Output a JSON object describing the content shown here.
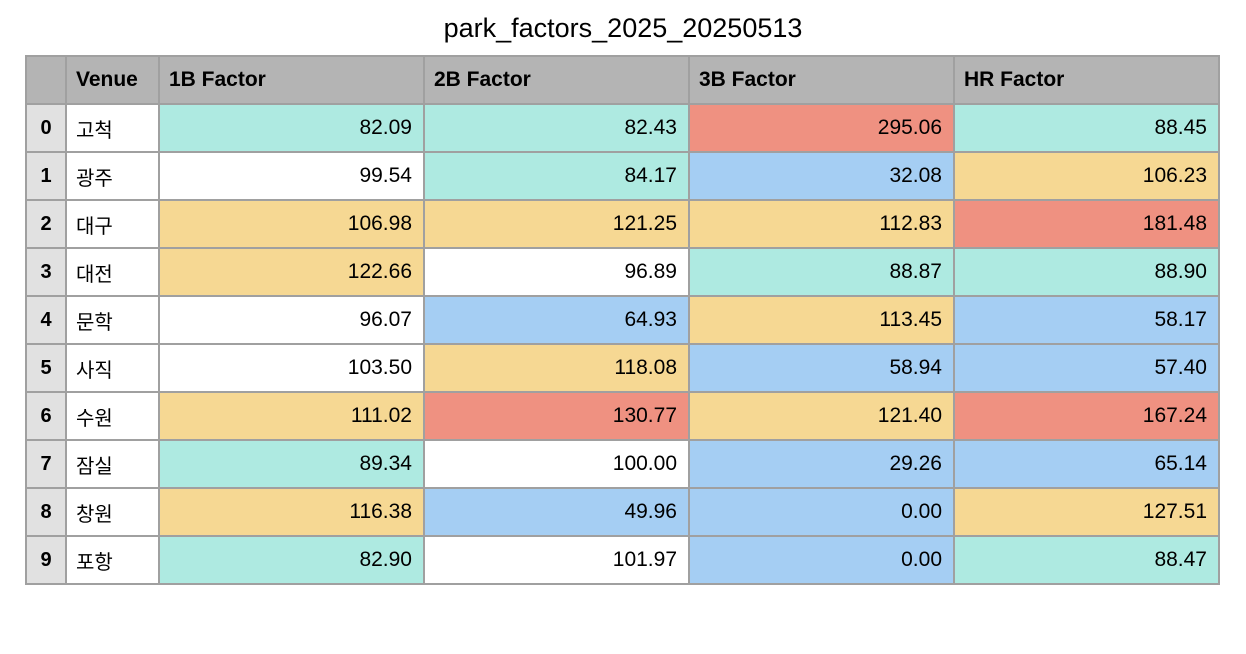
{
  "title": "park_factors_2025_20250513",
  "colors": {
    "header_bg": "#b4b4b4",
    "index_bg": "#e1e1e1",
    "border": "#a0a0a0",
    "teal": "#aeeae1",
    "white": "#ffffff",
    "salmon": "#ef9181",
    "blue": "#a5cef3",
    "orange": "#f6d893",
    "text": "#000000"
  },
  "chart_data": {
    "type": "table",
    "title": "park_factors_2025_20250513",
    "columns": [
      "",
      "Venue",
      "1B Factor",
      "2B Factor",
      "3B Factor",
      "HR Factor"
    ],
    "rows": [
      {
        "index": "0",
        "venue": "고척",
        "values": [
          "82.09",
          "82.43",
          "295.06",
          "88.45"
        ],
        "cell_colors": [
          "teal",
          "teal",
          "salmon",
          "teal"
        ]
      },
      {
        "index": "1",
        "venue": "광주",
        "values": [
          "99.54",
          "84.17",
          "32.08",
          "106.23"
        ],
        "cell_colors": [
          "white",
          "teal",
          "blue",
          "orange"
        ]
      },
      {
        "index": "2",
        "venue": "대구",
        "values": [
          "106.98",
          "121.25",
          "112.83",
          "181.48"
        ],
        "cell_colors": [
          "orange",
          "orange",
          "orange",
          "salmon"
        ]
      },
      {
        "index": "3",
        "venue": "대전",
        "values": [
          "122.66",
          "96.89",
          "88.87",
          "88.90"
        ],
        "cell_colors": [
          "orange",
          "white",
          "teal",
          "teal"
        ]
      },
      {
        "index": "4",
        "venue": "문학",
        "values": [
          "96.07",
          "64.93",
          "113.45",
          "58.17"
        ],
        "cell_colors": [
          "white",
          "blue",
          "orange",
          "blue"
        ]
      },
      {
        "index": "5",
        "venue": "사직",
        "values": [
          "103.50",
          "118.08",
          "58.94",
          "57.40"
        ],
        "cell_colors": [
          "white",
          "orange",
          "blue",
          "blue"
        ]
      },
      {
        "index": "6",
        "venue": "수원",
        "values": [
          "111.02",
          "130.77",
          "121.40",
          "167.24"
        ],
        "cell_colors": [
          "orange",
          "salmon",
          "orange",
          "salmon"
        ]
      },
      {
        "index": "7",
        "venue": "잠실",
        "values": [
          "89.34",
          "100.00",
          "29.26",
          "65.14"
        ],
        "cell_colors": [
          "teal",
          "white",
          "blue",
          "blue"
        ]
      },
      {
        "index": "8",
        "venue": "창원",
        "values": [
          "116.38",
          "49.96",
          "0.00",
          "127.51"
        ],
        "cell_colors": [
          "orange",
          "blue",
          "blue",
          "orange"
        ]
      },
      {
        "index": "9",
        "venue": "포항",
        "values": [
          "82.90",
          "101.97",
          "0.00",
          "88.47"
        ],
        "cell_colors": [
          "teal",
          "white",
          "blue",
          "teal"
        ]
      }
    ]
  }
}
